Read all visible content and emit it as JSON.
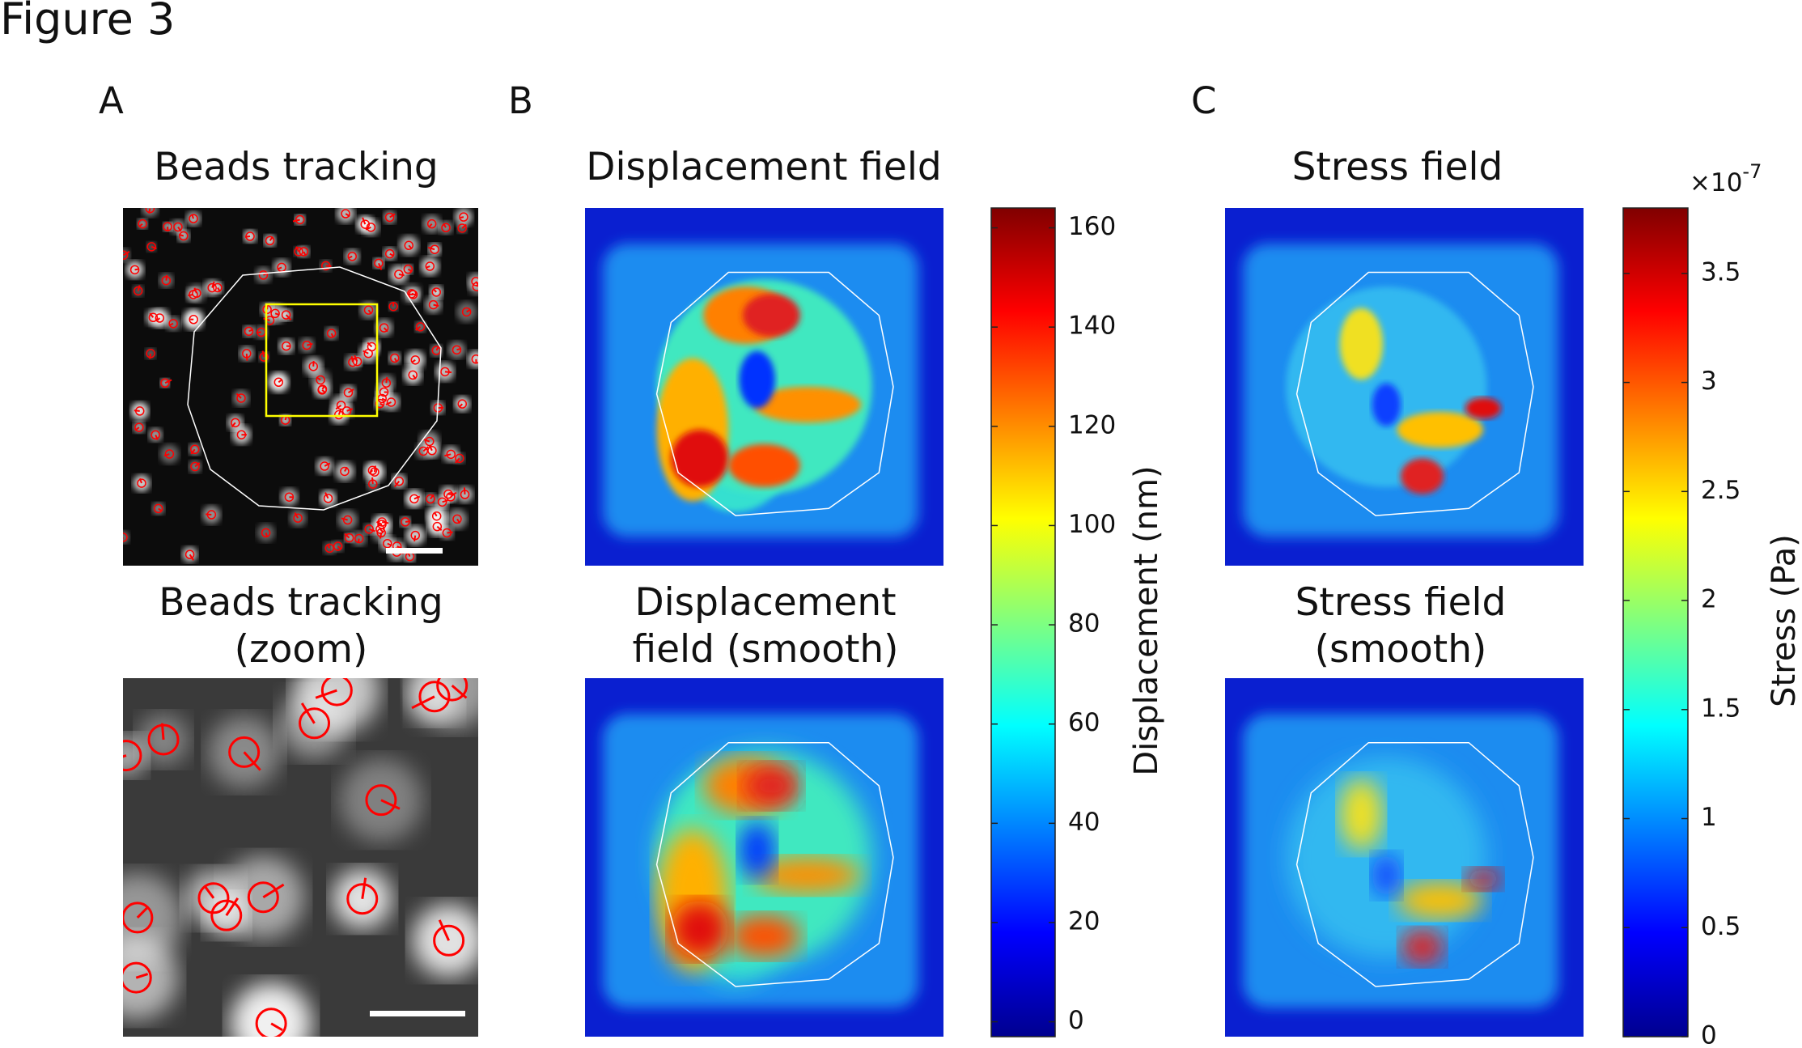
{
  "figure_label": "Figure 3",
  "panels": [
    {
      "label": "A",
      "images": [
        {
          "title": [
            "Beads tracking"
          ]
        },
        {
          "title": [
            "Beads tracking",
            "(zoom)"
          ]
        }
      ]
    },
    {
      "label": "B",
      "images": [
        {
          "title": [
            "Displacement field"
          ]
        },
        {
          "title": [
            "Displacement",
            "field (smooth)"
          ]
        }
      ]
    },
    {
      "label": "C",
      "images": [
        {
          "title": [
            "Stress field"
          ]
        },
        {
          "title": [
            "Stress field",
            "(smooth)"
          ]
        }
      ]
    }
  ],
  "colorbars": [
    {
      "label": "Displacement (nm)",
      "lim": [
        -3,
        164
      ],
      "ticks": [
        0,
        20,
        40,
        60,
        80,
        100,
        120,
        140,
        160
      ]
    },
    {
      "label": "Stress (Pa)",
      "multiplier": "×10",
      "exponent": "-7",
      "lim": [
        0,
        3.8
      ],
      "ticks": [
        0,
        0.5,
        1,
        1.5,
        2,
        2.5,
        3,
        3.5
      ]
    }
  ]
}
